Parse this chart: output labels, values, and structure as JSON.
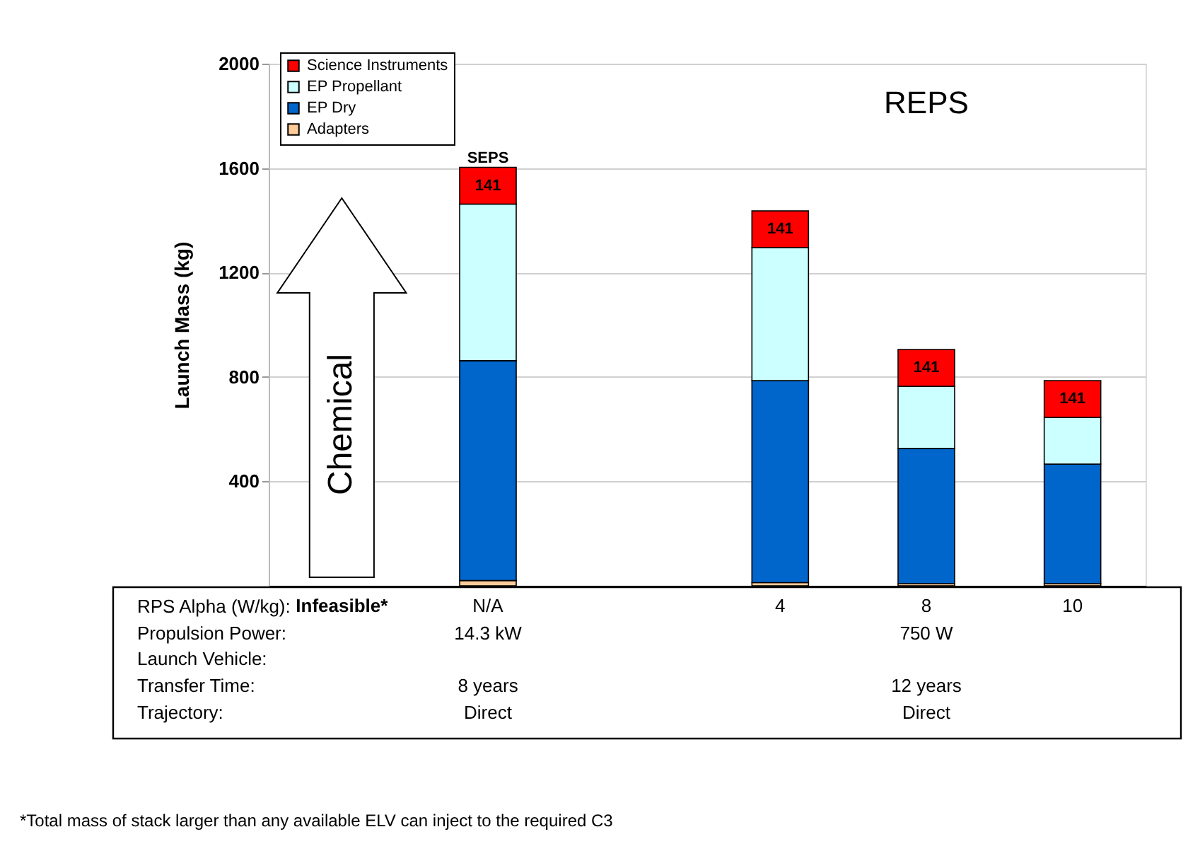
{
  "chart_data": {
    "type": "bar",
    "stacked": true,
    "categories": [
      "Infeasible*",
      "N/A",
      null,
      "4",
      "8",
      "10"
    ],
    "xlabel": "RPS Alpha (W/kg):",
    "ylabel": "Launch  Mass (kg)",
    "ylim": [
      0,
      2000
    ],
    "yticks": [
      400,
      800,
      1200,
      1600,
      2000
    ],
    "grid": "y",
    "legend": "top left",
    "series": [
      {
        "name": "Adapters",
        "color": "#ffcc99",
        "values": [
          null,
          20,
          null,
          12,
          8,
          8
        ]
      },
      {
        "name": "EP Dry",
        "color": "#0066cc",
        "values": [
          null,
          842,
          null,
          774,
          518,
          458
        ]
      },
      {
        "name": "EP Propellant",
        "color": "#ccffff",
        "values": [
          null,
          600,
          null,
          509,
          238,
          179
        ]
      },
      {
        "name": "Science Instruments",
        "color": "#ff0000",
        "values": [
          null,
          141,
          null,
          141,
          141,
          141
        ],
        "value_labels": [
          null,
          "141",
          null,
          "141",
          "141",
          "141"
        ]
      }
    ],
    "annotations": [
      {
        "text": "SEPS",
        "x": "N/A",
        "y": 1600
      },
      "REPS",
      "Chemical",
      "Propulsion Power:",
      "14.3 kW",
      "750 W",
      "Launch Vehicle:",
      "Transfer Time:",
      "8 years",
      "12 years",
      "Trajectory:",
      "Direct",
      "Direct",
      "*Total mass of stack larger than any available ELV can inject to the required C3"
    ]
  }
}
